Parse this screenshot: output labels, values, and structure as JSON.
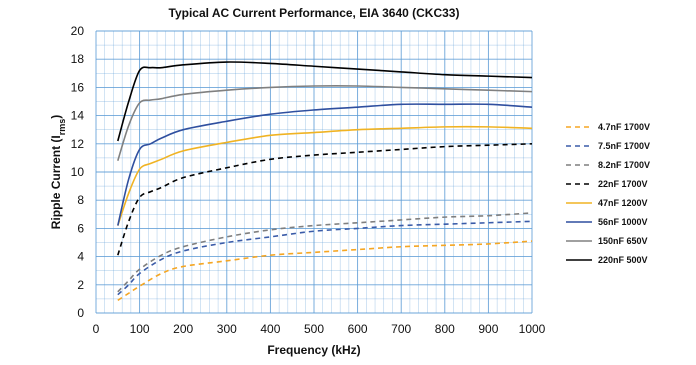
{
  "chart_data": {
    "type": "line",
    "title": "Typical AC Current Performance, EIA 3640 (CKC33)",
    "xlabel": "Frequency (kHz)",
    "ylabel_main": "Ripple Current (I",
    "ylabel_sub": "rms",
    "ylabel_close": ")",
    "xlim": [
      0,
      1000
    ],
    "ylim": [
      0,
      20
    ],
    "xticks": [
      0,
      100,
      200,
      300,
      400,
      500,
      600,
      700,
      800,
      900,
      1000
    ],
    "yticks": [
      0,
      2,
      4,
      6,
      8,
      10,
      12,
      14,
      16,
      18,
      20
    ],
    "grid": true,
    "legend_position": "right",
    "series": [
      {
        "name": "4.7nF 1700V",
        "color": "#f5a623",
        "dash": "dashed",
        "x": [
          50,
          75,
          100,
          150,
          200,
          300,
          400,
          500,
          600,
          700,
          800,
          900,
          1000
        ],
        "y": [
          0.9,
          1.4,
          1.9,
          2.8,
          3.3,
          3.7,
          4.1,
          4.3,
          4.5,
          4.7,
          4.8,
          4.9,
          5.1
        ]
      },
      {
        "name": "7.5nF 1700V",
        "color": "#3a5ba8",
        "dash": "dashed",
        "x": [
          50,
          75,
          100,
          150,
          200,
          300,
          400,
          500,
          600,
          700,
          800,
          900,
          1000
        ],
        "y": [
          1.3,
          2.0,
          2.8,
          3.8,
          4.4,
          5.0,
          5.4,
          5.8,
          6.0,
          6.2,
          6.3,
          6.4,
          6.5
        ]
      },
      {
        "name": "8.2nF 1700V",
        "color": "#7f7f7f",
        "dash": "dashed",
        "x": [
          50,
          75,
          100,
          150,
          200,
          300,
          400,
          500,
          600,
          700,
          800,
          900,
          1000
        ],
        "y": [
          1.5,
          2.3,
          3.1,
          4.1,
          4.7,
          5.4,
          5.9,
          6.2,
          6.4,
          6.6,
          6.8,
          6.9,
          7.1
        ]
      },
      {
        "name": "22nF 1700V",
        "color": "#000000",
        "dash": "dashed",
        "x": [
          50,
          75,
          100,
          125,
          150,
          200,
          300,
          400,
          500,
          600,
          700,
          800,
          900,
          1000
        ],
        "y": [
          4.1,
          6.5,
          8.2,
          8.6,
          8.9,
          9.6,
          10.3,
          10.9,
          11.2,
          11.4,
          11.6,
          11.8,
          11.9,
          12.0
        ]
      },
      {
        "name": "47nF 1200V",
        "color": "#f0b323",
        "dash": "solid",
        "x": [
          50,
          75,
          100,
          125,
          150,
          200,
          300,
          400,
          500,
          600,
          700,
          800,
          900,
          1000
        ],
        "y": [
          6.2,
          8.5,
          10.2,
          10.6,
          10.9,
          11.5,
          12.1,
          12.6,
          12.8,
          13.0,
          13.1,
          13.2,
          13.2,
          13.1
        ]
      },
      {
        "name": "56nF 1000V",
        "color": "#2f4f9f",
        "dash": "solid",
        "x": [
          50,
          75,
          100,
          125,
          150,
          200,
          300,
          400,
          500,
          600,
          700,
          800,
          900,
          1000
        ],
        "y": [
          6.2,
          9.5,
          11.6,
          12.0,
          12.4,
          13.0,
          13.6,
          14.1,
          14.4,
          14.6,
          14.8,
          14.8,
          14.8,
          14.6
        ]
      },
      {
        "name": "150nF 650V",
        "color": "#808080",
        "dash": "solid",
        "x": [
          50,
          75,
          100,
          125,
          150,
          200,
          300,
          400,
          500,
          600,
          700,
          800,
          900,
          1000
        ],
        "y": [
          10.8,
          13.3,
          14.9,
          15.1,
          15.2,
          15.5,
          15.8,
          16.0,
          16.1,
          16.1,
          16.0,
          15.9,
          15.8,
          15.7
        ]
      },
      {
        "name": "220nF 500V",
        "color": "#000000",
        "dash": "solid",
        "x": [
          50,
          75,
          100,
          125,
          150,
          200,
          300,
          400,
          500,
          600,
          700,
          800,
          900,
          1000
        ],
        "y": [
          12.2,
          15.0,
          17.2,
          17.4,
          17.4,
          17.6,
          17.8,
          17.7,
          17.5,
          17.3,
          17.1,
          16.9,
          16.8,
          16.7
        ]
      }
    ]
  }
}
